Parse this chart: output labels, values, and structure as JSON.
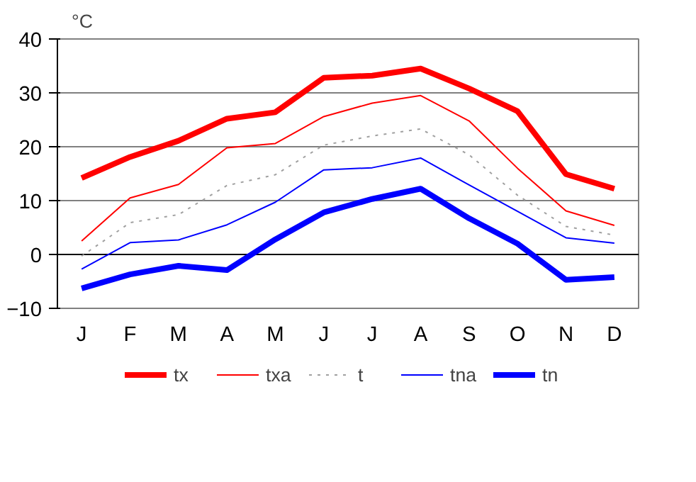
{
  "chart_data": {
    "type": "line",
    "ylabel": "°C",
    "categories": [
      "J",
      "F",
      "M",
      "A",
      "M",
      "J",
      "J",
      "A",
      "S",
      "O",
      "N",
      "D"
    ],
    "ylim": [
      -10,
      40
    ],
    "yticks": [
      -10,
      0,
      10,
      20,
      30,
      40
    ],
    "grid": "y",
    "legend": "bottom",
    "marker": "none",
    "series": [
      {
        "name": "tx",
        "color": "#ff0000",
        "values": [
          14.2,
          18.1,
          21.1,
          25.2,
          26.4,
          32.8,
          33.2,
          34.5,
          30.8,
          26.6,
          14.9,
          12.2
        ]
      },
      {
        "name": "txa",
        "color": "#ff0000",
        "values": [
          2.5,
          10.5,
          13.0,
          19.8,
          20.6,
          25.6,
          28.1,
          29.5,
          24.8,
          16.0,
          8.1,
          5.4
        ]
      },
      {
        "name": "t",
        "color": "#a0a0a0",
        "line_style": "dotted",
        "values": [
          -0.3,
          5.9,
          7.4,
          12.8,
          14.8,
          20.3,
          22.0,
          23.3,
          18.5,
          11.0,
          5.2,
          3.6
        ]
      },
      {
        "name": "tna",
        "color": "#0000ff",
        "values": [
          -2.7,
          2.2,
          2.7,
          5.5,
          9.7,
          15.7,
          16.1,
          17.9,
          12.9,
          8.0,
          3.1,
          2.1
        ]
      },
      {
        "name": "tn",
        "color": "#0000ff",
        "values": [
          -6.3,
          -3.7,
          -2.1,
          -2.9,
          2.8,
          7.8,
          10.3,
          12.2,
          6.7,
          2.0,
          -4.7,
          -4.2
        ]
      }
    ]
  }
}
